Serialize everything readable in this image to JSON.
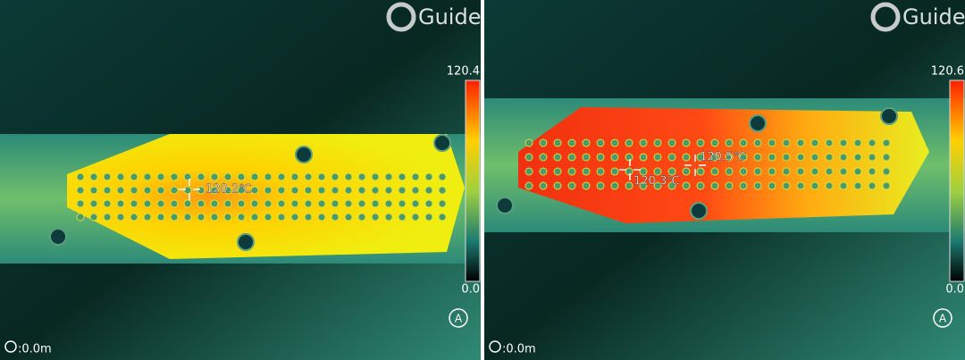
{
  "panels": [
    {
      "brand": "Guide",
      "scale_max": "120.4",
      "scale_min": "0.0",
      "mode": "A",
      "distance": ":0.0m",
      "markers": [
        {
          "label": "120.2℃"
        }
      ]
    },
    {
      "brand": "Guide",
      "scale_max": "120.6",
      "scale_min": "0.0",
      "mode": "A",
      "distance": ":0.0m",
      "markers": [
        {
          "label": "120.3℃"
        },
        {
          "label": "120.5℃"
        }
      ]
    }
  ]
}
